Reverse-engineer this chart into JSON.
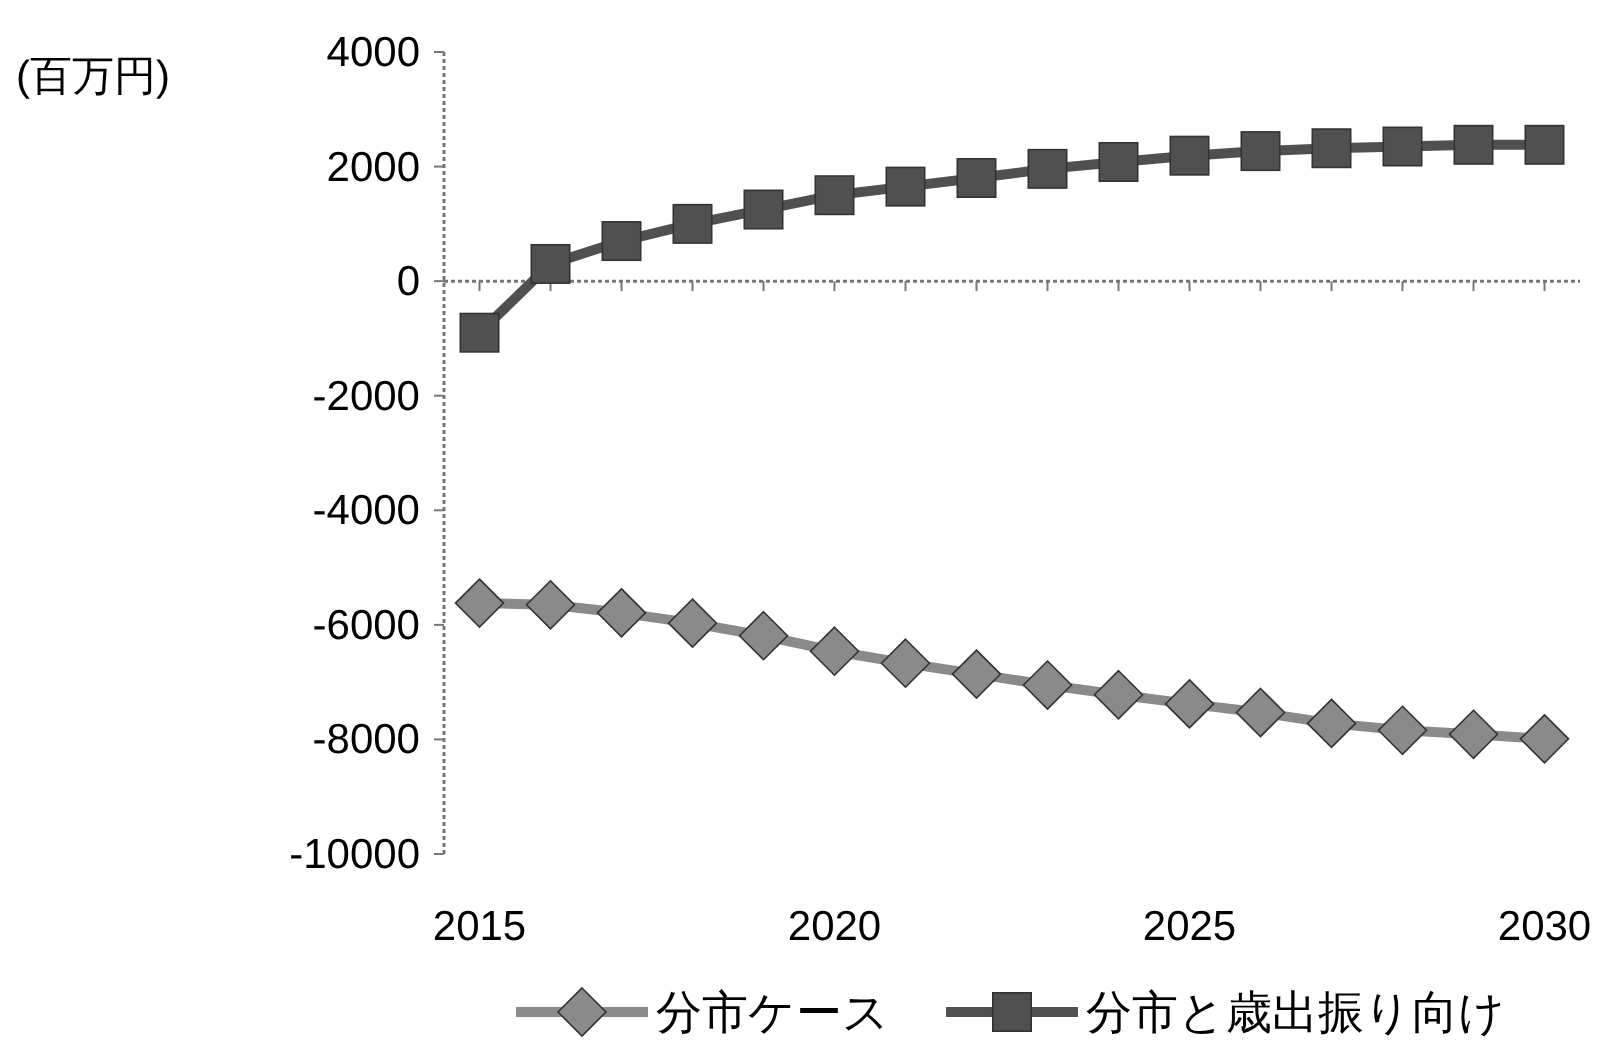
{
  "chart_data": {
    "type": "line",
    "ylabel": "(百万円)",
    "x": [
      2015,
      2016,
      2017,
      2018,
      2019,
      2020,
      2021,
      2022,
      2023,
      2024,
      2025,
      2026,
      2027,
      2028,
      2029,
      2030
    ],
    "series": [
      {
        "name": "分市ケース",
        "color": "#8a8a8a",
        "marker": "diamond",
        "values": [
          -5620,
          -5650,
          -5790,
          -5970,
          -6190,
          -6460,
          -6670,
          -6860,
          -7050,
          -7220,
          -7380,
          -7530,
          -7720,
          -7840,
          -7910,
          -7990
        ]
      },
      {
        "name": "分市と歳出振り向け",
        "color": "#505050",
        "marker": "square",
        "values": [
          -900,
          300,
          700,
          1000,
          1250,
          1500,
          1650,
          1800,
          1960,
          2080,
          2190,
          2270,
          2320,
          2350,
          2380,
          2380
        ]
      }
    ],
    "xlim": [
      2014.5,
      2030.5
    ],
    "ylim": [
      -10000,
      4000
    ],
    "xticks": [
      2015,
      2020,
      2025,
      2030
    ],
    "yticks": [
      -10000,
      -8000,
      -6000,
      -4000,
      -2000,
      0,
      2000,
      4000
    ],
    "legend": "bottom"
  }
}
